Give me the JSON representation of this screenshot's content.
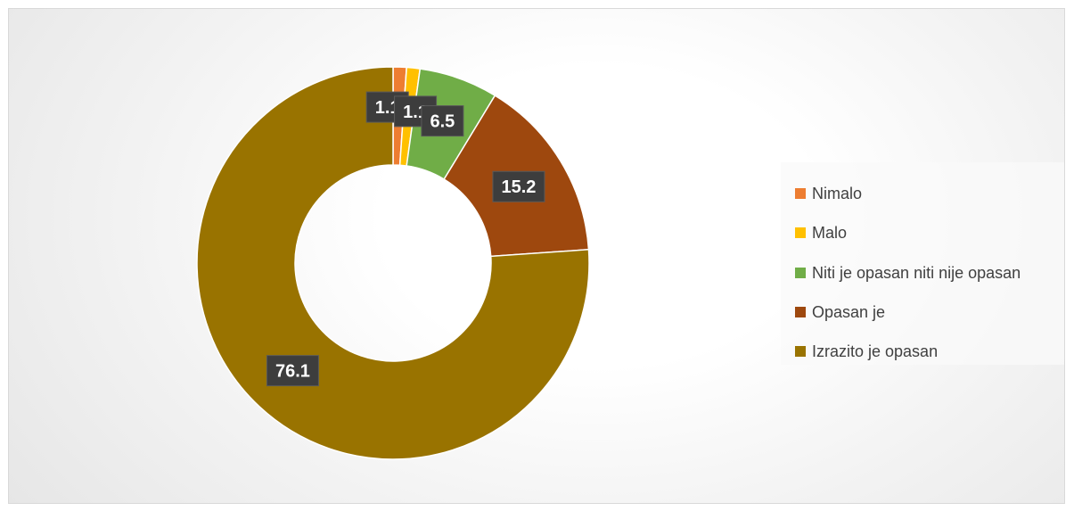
{
  "chart_data": {
    "type": "pie",
    "donut": true,
    "title": "",
    "legend_position": "right",
    "categories": [
      "Nimalo",
      "Malo",
      "Niti je opasan niti nije opasan",
      "Opasan je",
      "Izrazito je opasan"
    ],
    "values": [
      1.1,
      1.1,
      6.5,
      15.2,
      76.1
    ],
    "colors": [
      "#ED7D31",
      "#FFC000",
      "#70AD47",
      "#9E480E",
      "#997300"
    ],
    "data_labels": [
      "1.1",
      "1.1",
      "6.5",
      "15.2",
      "76.1"
    ]
  }
}
